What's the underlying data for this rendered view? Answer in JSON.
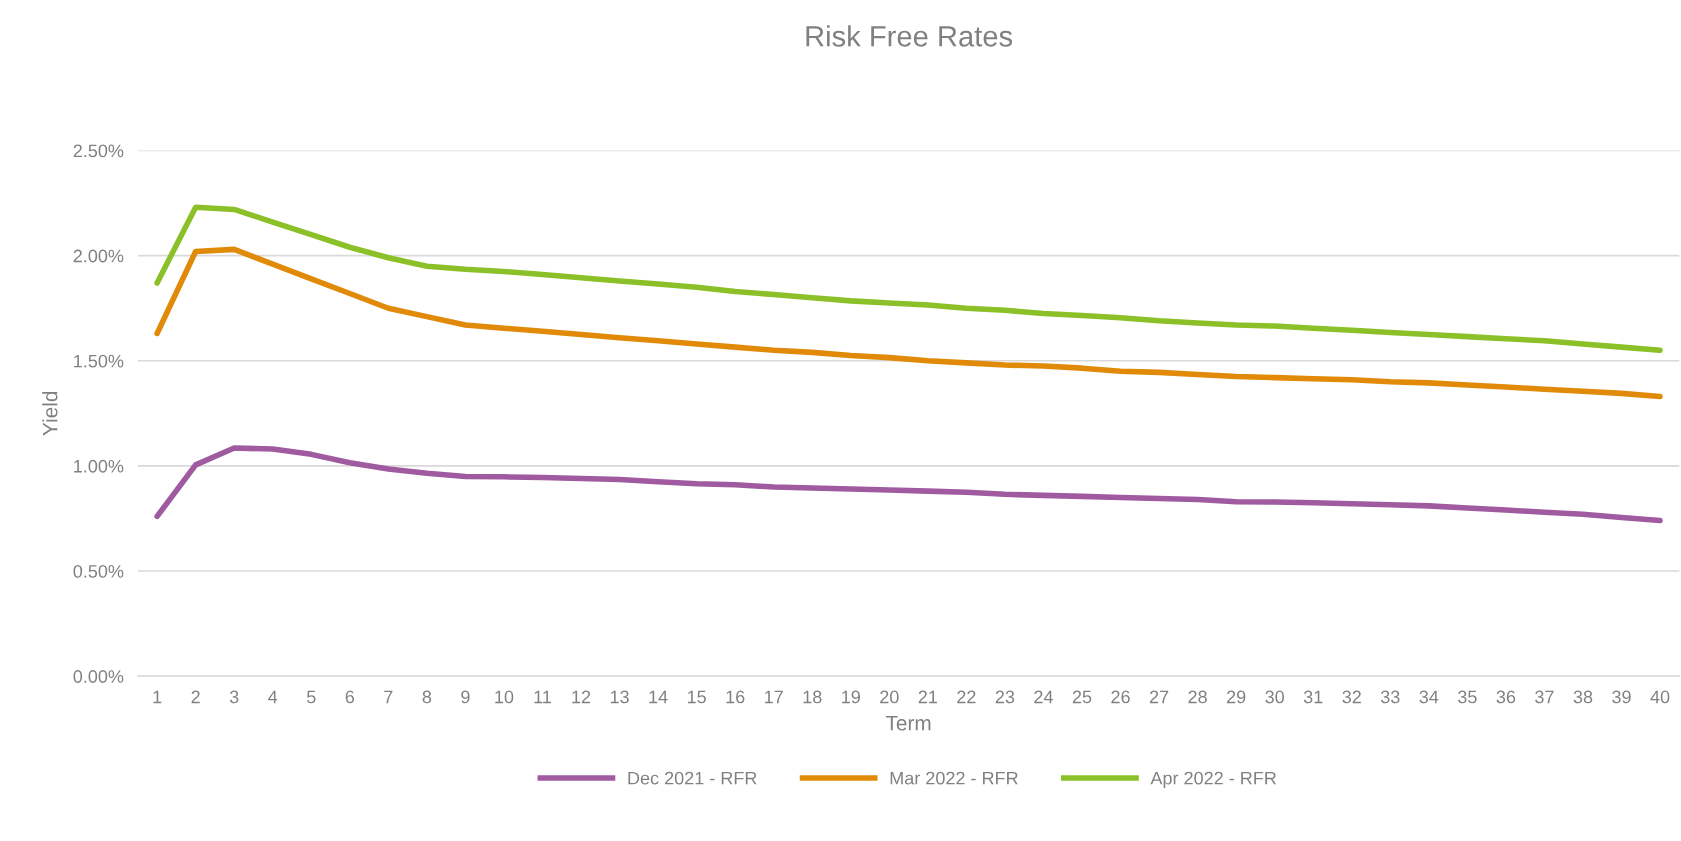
{
  "chart_data": {
    "type": "line",
    "title": "Risk Free Rates",
    "xlabel": "Term",
    "ylabel": "Yield",
    "categories": [
      "1",
      "2",
      "3",
      "4",
      "5",
      "6",
      "7",
      "8",
      "9",
      "10",
      "11",
      "12",
      "13",
      "14",
      "15",
      "16",
      "17",
      "18",
      "19",
      "20",
      "21",
      "22",
      "23",
      "24",
      "25",
      "26",
      "27",
      "28",
      "29",
      "30",
      "31",
      "32",
      "33",
      "34",
      "35",
      "36",
      "37",
      "38",
      "39",
      "40"
    ],
    "series": [
      {
        "name": "Dec 2021 - RFR",
        "color": "#a05aa0",
        "values": [
          0.76,
          1.005,
          1.085,
          1.08,
          1.055,
          1.015,
          0.985,
          0.965,
          0.95,
          0.948,
          0.945,
          0.94,
          0.935,
          0.925,
          0.915,
          0.91,
          0.9,
          0.895,
          0.89,
          0.885,
          0.88,
          0.875,
          0.865,
          0.86,
          0.855,
          0.85,
          0.845,
          0.84,
          0.83,
          0.828,
          0.825,
          0.82,
          0.815,
          0.81,
          0.8,
          0.79,
          0.78,
          0.77,
          0.755,
          0.74
        ]
      },
      {
        "name": "Mar 2022 - RFR",
        "color": "#e08a08",
        "values": [
          1.63,
          2.02,
          2.03,
          1.96,
          1.89,
          1.82,
          1.75,
          1.71,
          1.67,
          1.655,
          1.64,
          1.625,
          1.61,
          1.595,
          1.58,
          1.565,
          1.55,
          1.54,
          1.525,
          1.515,
          1.5,
          1.49,
          1.48,
          1.475,
          1.465,
          1.45,
          1.445,
          1.435,
          1.425,
          1.42,
          1.415,
          1.41,
          1.4,
          1.395,
          1.385,
          1.375,
          1.365,
          1.355,
          1.345,
          1.33
        ]
      },
      {
        "name": "Apr 2022 - RFR",
        "color": "#8cc028",
        "values": [
          1.87,
          2.23,
          2.22,
          2.16,
          2.1,
          2.04,
          1.99,
          1.95,
          1.935,
          1.925,
          1.91,
          1.895,
          1.88,
          1.865,
          1.85,
          1.83,
          1.815,
          1.8,
          1.785,
          1.775,
          1.765,
          1.75,
          1.74,
          1.725,
          1.715,
          1.705,
          1.69,
          1.68,
          1.67,
          1.665,
          1.655,
          1.645,
          1.635,
          1.625,
          1.615,
          1.605,
          1.595,
          1.58,
          1.565,
          1.55
        ]
      }
    ],
    "ylim": [
      0,
      2.5
    ],
    "yticks": [
      {
        "value": 0,
        "label": "0.00%"
      },
      {
        "value": 0.5,
        "label": "0.50%"
      },
      {
        "value": 1,
        "label": "1.00%"
      },
      {
        "value": 1.5,
        "label": "1.50%"
      },
      {
        "value": 2,
        "label": "2.00%"
      },
      {
        "value": 2.5,
        "label": "2.50%"
      }
    ],
    "grid": "y",
    "legend": "bottom",
    "marker": "none",
    "line_style": "solid"
  }
}
